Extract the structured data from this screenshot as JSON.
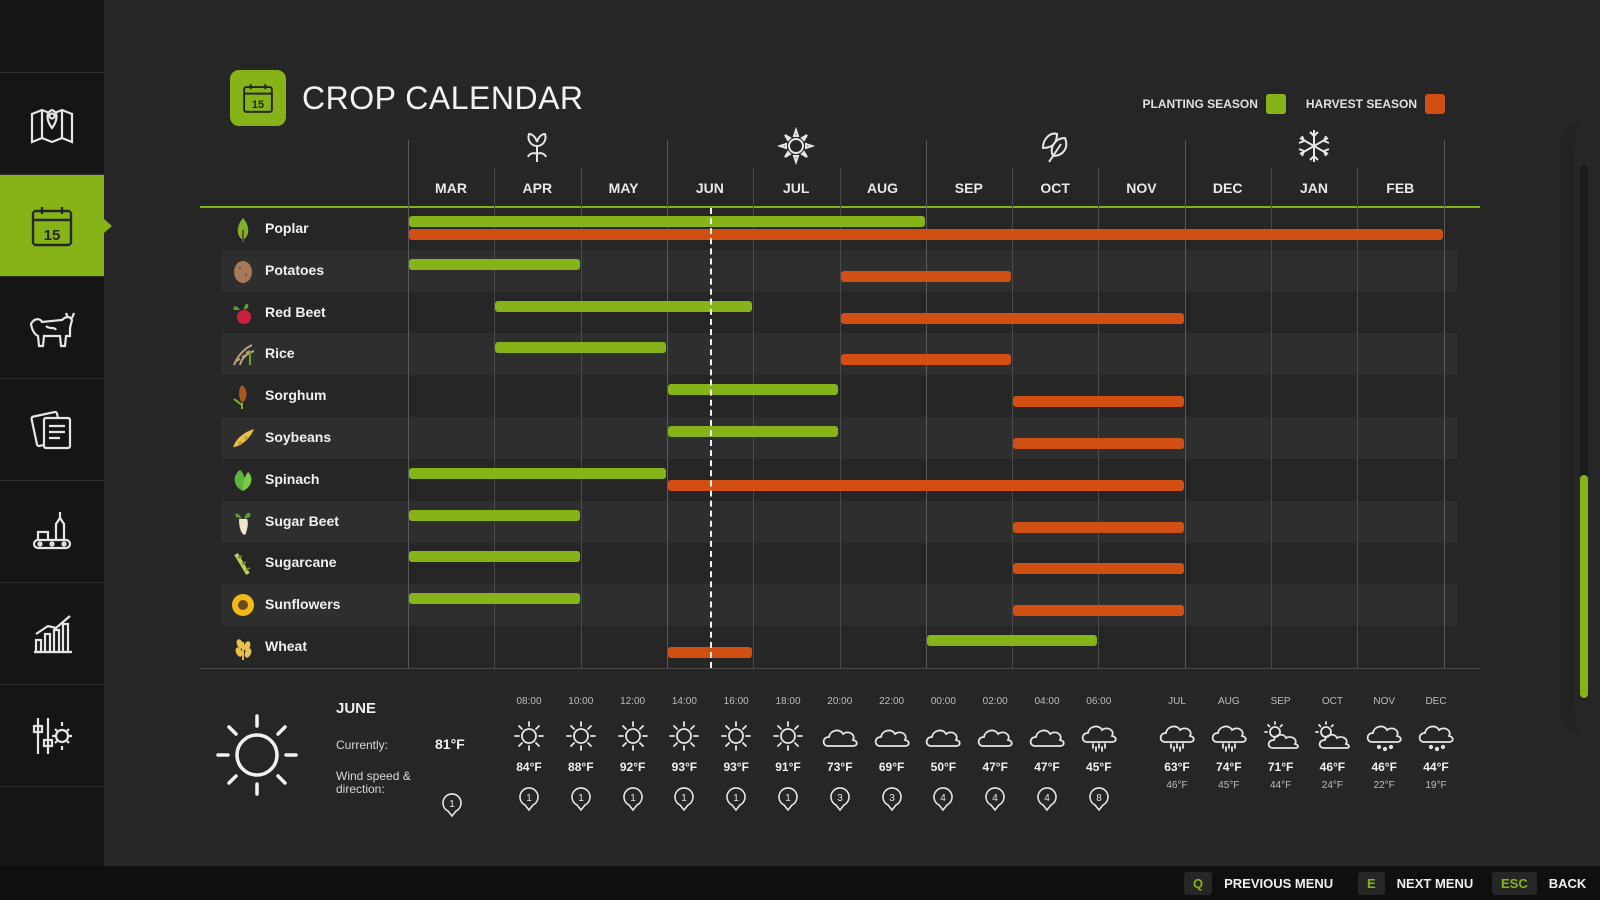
{
  "page": {
    "title": "CROP CALENDAR",
    "title_icon_day": "15"
  },
  "legend": {
    "planting": {
      "label": "PLANTING SEASON",
      "color": "#86b318"
    },
    "harvest": {
      "label": "HARVEST SEASON",
      "color": "#d24f14"
    }
  },
  "sidebar": {
    "items": [
      {
        "name": "map",
        "icon": "map-pin-icon"
      },
      {
        "name": "calendar",
        "icon": "calendar-icon",
        "label": "15",
        "active": true
      },
      {
        "name": "animals",
        "icon": "cow-icon"
      },
      {
        "name": "contracts",
        "icon": "documents-icon"
      },
      {
        "name": "production",
        "icon": "factory-icon"
      },
      {
        "name": "statistics",
        "icon": "bar-chart-icon"
      },
      {
        "name": "settings",
        "icon": "settings-icon"
      }
    ]
  },
  "calendar": {
    "months": [
      "MAR",
      "APR",
      "MAY",
      "JUN",
      "JUL",
      "AUG",
      "SEP",
      "OCT",
      "NOV",
      "DEC",
      "JAN",
      "FEB"
    ],
    "seasons": [
      "spring-icon",
      "summer-icon",
      "autumn-icon",
      "winter-icon"
    ],
    "current_month_index": 3,
    "crops": [
      {
        "name": "Poplar",
        "icon": "poplar-icon",
        "planting": [
          [
            0,
            6
          ]
        ],
        "harvest": [
          [
            0,
            12
          ]
        ]
      },
      {
        "name": "Potatoes",
        "icon": "potato-icon",
        "planting": [
          [
            0,
            2
          ]
        ],
        "harvest": [
          [
            5,
            7
          ]
        ]
      },
      {
        "name": "Red Beet",
        "icon": "red-beet-icon",
        "planting": [
          [
            1,
            4
          ]
        ],
        "harvest": [
          [
            5,
            9
          ]
        ]
      },
      {
        "name": "Rice",
        "icon": "rice-icon",
        "planting": [
          [
            1,
            3
          ]
        ],
        "harvest": [
          [
            5,
            7
          ]
        ]
      },
      {
        "name": "Sorghum",
        "icon": "sorghum-icon",
        "planting": [
          [
            3,
            5
          ]
        ],
        "harvest": [
          [
            7,
            9
          ]
        ]
      },
      {
        "name": "Soybeans",
        "icon": "soybean-icon",
        "planting": [
          [
            3,
            5
          ]
        ],
        "harvest": [
          [
            7,
            9
          ]
        ]
      },
      {
        "name": "Spinach",
        "icon": "spinach-icon",
        "planting": [
          [
            0,
            3
          ]
        ],
        "harvest": [
          [
            3,
            9
          ]
        ]
      },
      {
        "name": "Sugar Beet",
        "icon": "sugar-beet-icon",
        "planting": [
          [
            0,
            2
          ]
        ],
        "harvest": [
          [
            7,
            9
          ]
        ]
      },
      {
        "name": "Sugarcane",
        "icon": "sugarcane-icon",
        "planting": [
          [
            0,
            2
          ]
        ],
        "harvest": [
          [
            7,
            9
          ]
        ]
      },
      {
        "name": "Sunflowers",
        "icon": "sunflower-icon",
        "planting": [
          [
            0,
            2
          ]
        ],
        "harvest": [
          [
            7,
            9
          ]
        ]
      },
      {
        "name": "Wheat",
        "icon": "wheat-icon",
        "planting": [
          [
            6,
            8
          ]
        ],
        "harvest": [
          [
            3,
            4
          ]
        ]
      }
    ]
  },
  "weather": {
    "month": "JUNE",
    "current_label": "Currently:",
    "current_temp": "81°F",
    "wind_label": "Wind speed & direction:",
    "wind_current": "1",
    "icon": "sun-icon",
    "hourly": [
      {
        "time": "08:00",
        "icon": "sun",
        "temp": "84°F",
        "wind": "1"
      },
      {
        "time": "10:00",
        "icon": "sun",
        "temp": "88°F",
        "wind": "1"
      },
      {
        "time": "12:00",
        "icon": "sun",
        "temp": "92°F",
        "wind": "1"
      },
      {
        "time": "14:00",
        "icon": "sun",
        "temp": "93°F",
        "wind": "1"
      },
      {
        "time": "16:00",
        "icon": "sun",
        "temp": "93°F",
        "wind": "1"
      },
      {
        "time": "18:00",
        "icon": "sun",
        "temp": "91°F",
        "wind": "1"
      },
      {
        "time": "20:00",
        "icon": "cloud",
        "temp": "73°F",
        "wind": "3"
      },
      {
        "time": "22:00",
        "icon": "cloud",
        "temp": "69°F",
        "wind": "3"
      },
      {
        "time": "00:00",
        "icon": "cloud",
        "temp": "50°F",
        "wind": "4"
      },
      {
        "time": "02:00",
        "icon": "cloud",
        "temp": "47°F",
        "wind": "4"
      },
      {
        "time": "04:00",
        "icon": "cloud",
        "temp": "47°F",
        "wind": "4"
      },
      {
        "time": "06:00",
        "icon": "rain",
        "temp": "45°F",
        "wind": "8"
      }
    ],
    "monthly": [
      {
        "month": "JUL",
        "icon": "rain",
        "high": "63°F",
        "low": "46°F"
      },
      {
        "month": "AUG",
        "icon": "rain",
        "high": "74°F",
        "low": "45°F"
      },
      {
        "month": "SEP",
        "icon": "partly-cloudy",
        "high": "71°F",
        "low": "44°F"
      },
      {
        "month": "OCT",
        "icon": "partly-cloudy",
        "high": "46°F",
        "low": "24°F"
      },
      {
        "month": "NOV",
        "icon": "snow",
        "high": "46°F",
        "low": "22°F"
      },
      {
        "month": "DEC",
        "icon": "snow",
        "high": "44°F",
        "low": "19°F"
      }
    ]
  },
  "footer": {
    "prev": {
      "key": "Q",
      "label": "PREVIOUS MENU"
    },
    "next": {
      "key": "E",
      "label": "NEXT MENU"
    },
    "back": {
      "key": "ESC",
      "label": "BACK"
    }
  }
}
